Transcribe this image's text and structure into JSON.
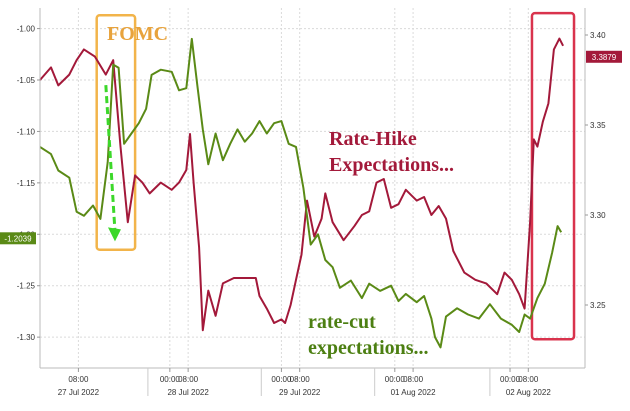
{
  "chart_data": {
    "type": "line",
    "left_axis": {
      "range": [
        -1.33,
        -0.98
      ],
      "ticks": [
        -1.0,
        -1.05,
        -1.1,
        -1.15,
        -1.2,
        -1.25,
        -1.3
      ],
      "tick_labels": [
        "-1.00",
        "-1.05",
        "-1.10",
        "-1.15",
        "-1.20",
        "-1.25",
        "-1.30"
      ]
    },
    "right_axis": {
      "range": [
        3.215,
        3.415
      ],
      "ticks": [
        3.25,
        3.3,
        3.35,
        3.4
      ],
      "tick_labels": [
        "3.25",
        "3.30",
        "3.35",
        "3.40"
      ]
    },
    "x_axis": {
      "time_ticks": [
        {
          "t": 1.05,
          "label": "08:00"
        },
        {
          "t": 3.55,
          "label": "00:00"
        },
        {
          "t": 4.05,
          "label": "08:00"
        },
        {
          "t": 6.6,
          "label": "00:00"
        },
        {
          "t": 7.1,
          "label": "08:00"
        },
        {
          "t": 9.7,
          "label": "00:00"
        },
        {
          "t": 10.2,
          "label": "08:00"
        },
        {
          "t": 12.85,
          "label": "00:00"
        },
        {
          "t": 13.35,
          "label": "08:00"
        }
      ],
      "date_labels": [
        {
          "t": 1.05,
          "label": "27 Jul 2022"
        },
        {
          "t": 4.05,
          "label": "28 Jul 2022"
        },
        {
          "t": 7.1,
          "label": "29 Jul 2022"
        },
        {
          "t": 10.2,
          "label": "01 Aug 2022"
        },
        {
          "t": 13.35,
          "label": "02 Aug 2022"
        }
      ],
      "range": [
        0,
        14.9
      ]
    },
    "grid": true,
    "series": [
      {
        "name": "Rate-Hike Expectations",
        "axis": "right",
        "color": "#a3193a",
        "points": [
          [
            0,
            3.375
          ],
          [
            0.3,
            3.382
          ],
          [
            0.5,
            3.372
          ],
          [
            0.8,
            3.378
          ],
          [
            1.0,
            3.386
          ],
          [
            1.2,
            3.392
          ],
          [
            1.5,
            3.388
          ],
          [
            1.8,
            3.378
          ],
          [
            2.0,
            3.386
          ],
          [
            2.2,
            3.338
          ],
          [
            2.4,
            3.296
          ],
          [
            2.6,
            3.322
          ],
          [
            2.8,
            3.318
          ],
          [
            3.0,
            3.312
          ],
          [
            3.3,
            3.318
          ],
          [
            3.6,
            3.314
          ],
          [
            3.8,
            3.318
          ],
          [
            4.0,
            3.325
          ],
          [
            4.1,
            3.345
          ],
          [
            4.2,
            3.318
          ],
          [
            4.35,
            3.282
          ],
          [
            4.45,
            3.236
          ],
          [
            4.6,
            3.258
          ],
          [
            4.8,
            3.244
          ],
          [
            5.0,
            3.262
          ],
          [
            5.3,
            3.265
          ],
          [
            5.6,
            3.265
          ],
          [
            5.9,
            3.265
          ],
          [
            6.0,
            3.255
          ],
          [
            6.2,
            3.248
          ],
          [
            6.4,
            3.24
          ],
          [
            6.6,
            3.242
          ],
          [
            6.7,
            3.24
          ],
          [
            6.85,
            3.25
          ],
          [
            7.0,
            3.264
          ],
          [
            7.15,
            3.278
          ],
          [
            7.3,
            3.308
          ],
          [
            7.5,
            3.288
          ],
          [
            7.7,
            3.298
          ],
          [
            7.8,
            3.312
          ],
          [
            8.0,
            3.296
          ],
          [
            8.3,
            3.286
          ],
          [
            8.6,
            3.294
          ],
          [
            8.8,
            3.3
          ],
          [
            9.0,
            3.302
          ],
          [
            9.2,
            3.318
          ],
          [
            9.4,
            3.32
          ],
          [
            9.6,
            3.304
          ],
          [
            9.8,
            3.306
          ],
          [
            10.0,
            3.314
          ],
          [
            10.3,
            3.308
          ],
          [
            10.5,
            3.31
          ],
          [
            10.7,
            3.3
          ],
          [
            10.9,
            3.305
          ],
          [
            11.1,
            3.298
          ],
          [
            11.3,
            3.28
          ],
          [
            11.6,
            3.268
          ],
          [
            11.9,
            3.264
          ],
          [
            12.2,
            3.262
          ],
          [
            12.5,
            3.256
          ],
          [
            12.7,
            3.268
          ],
          [
            12.9,
            3.264
          ],
          [
            13.1,
            3.256
          ],
          [
            13.25,
            3.248
          ],
          [
            13.4,
            3.296
          ],
          [
            13.5,
            3.342
          ],
          [
            13.6,
            3.338
          ],
          [
            13.75,
            3.352
          ],
          [
            13.9,
            3.362
          ],
          [
            14.05,
            3.392
          ],
          [
            14.2,
            3.398
          ],
          [
            14.3,
            3.394
          ]
        ]
      },
      {
        "name": "rate-cut expectations",
        "axis": "left",
        "color": "#5a8a16",
        "points": [
          [
            0,
            -1.115
          ],
          [
            0.3,
            -1.122
          ],
          [
            0.5,
            -1.138
          ],
          [
            0.8,
            -1.145
          ],
          [
            1.0,
            -1.178
          ],
          [
            1.2,
            -1.182
          ],
          [
            1.45,
            -1.172
          ],
          [
            1.65,
            -1.185
          ],
          [
            1.85,
            -1.13
          ],
          [
            2.0,
            -1.035
          ],
          [
            2.15,
            -1.038
          ],
          [
            2.3,
            -1.112
          ],
          [
            2.5,
            -1.102
          ],
          [
            2.7,
            -1.092
          ],
          [
            2.9,
            -1.078
          ],
          [
            3.05,
            -1.045
          ],
          [
            3.3,
            -1.04
          ],
          [
            3.6,
            -1.042
          ],
          [
            3.8,
            -1.06
          ],
          [
            4.0,
            -1.058
          ],
          [
            4.15,
            -1.01
          ],
          [
            4.3,
            -1.055
          ],
          [
            4.45,
            -1.098
          ],
          [
            4.6,
            -1.132
          ],
          [
            4.8,
            -1.102
          ],
          [
            5.0,
            -1.128
          ],
          [
            5.2,
            -1.112
          ],
          [
            5.4,
            -1.098
          ],
          [
            5.6,
            -1.11
          ],
          [
            5.8,
            -1.102
          ],
          [
            6.0,
            -1.09
          ],
          [
            6.2,
            -1.102
          ],
          [
            6.4,
            -1.092
          ],
          [
            6.6,
            -1.09
          ],
          [
            6.8,
            -1.112
          ],
          [
            7.0,
            -1.115
          ],
          [
            7.2,
            -1.155
          ],
          [
            7.4,
            -1.21
          ],
          [
            7.6,
            -1.2
          ],
          [
            7.8,
            -1.225
          ],
          [
            8.0,
            -1.232
          ],
          [
            8.2,
            -1.252
          ],
          [
            8.5,
            -1.245
          ],
          [
            8.8,
            -1.262
          ],
          [
            9.0,
            -1.248
          ],
          [
            9.3,
            -1.255
          ],
          [
            9.6,
            -1.25
          ],
          [
            9.8,
            -1.265
          ],
          [
            10.0,
            -1.258
          ],
          [
            10.3,
            -1.266
          ],
          [
            10.5,
            -1.26
          ],
          [
            10.7,
            -1.282
          ],
          [
            10.8,
            -1.3
          ],
          [
            10.95,
            -1.31
          ],
          [
            11.1,
            -1.28
          ],
          [
            11.4,
            -1.272
          ],
          [
            11.7,
            -1.278
          ],
          [
            12.0,
            -1.282
          ],
          [
            12.3,
            -1.268
          ],
          [
            12.6,
            -1.282
          ],
          [
            12.9,
            -1.288
          ],
          [
            13.1,
            -1.295
          ],
          [
            13.25,
            -1.278
          ],
          [
            13.4,
            -1.282
          ],
          [
            13.6,
            -1.262
          ],
          [
            13.8,
            -1.248
          ],
          [
            14.0,
            -1.218
          ],
          [
            14.15,
            -1.192
          ],
          [
            14.25,
            -1.198
          ]
        ]
      }
    ],
    "last_value_tags": [
      {
        "axis": "left",
        "value": -1.2039,
        "label": "-1.2039",
        "color": "#5a8a16"
      },
      {
        "axis": "right",
        "value": 3.3879,
        "label": "3.3879",
        "color": "#a3193a"
      }
    ],
    "annotations": [
      {
        "text": "FOMC",
        "color": "#e8a33c"
      },
      {
        "text_lines": [
          "Rate-Hike",
          "Expectations..."
        ],
        "color": "#a3193a"
      },
      {
        "text_lines": [
          "rate-cut",
          "expectations..."
        ],
        "color": "#4c7f12"
      }
    ],
    "highlight_boxes": [
      {
        "label": "fomc-box",
        "color": "#f2b44a",
        "x_range": [
          1.55,
          2.6
        ],
        "y_range_left": [
          -0.987,
          -1.215
        ]
      },
      {
        "label": "recent-box",
        "color": "#d9334d",
        "x_range": [
          13.45,
          14.6
        ],
        "y_range_left": [
          -0.985,
          -1.302
        ]
      }
    ],
    "arrow": {
      "color": "#3cd82a",
      "from": [
        1.8,
        -1.055
      ],
      "to": [
        2.05,
        -1.205
      ]
    }
  }
}
